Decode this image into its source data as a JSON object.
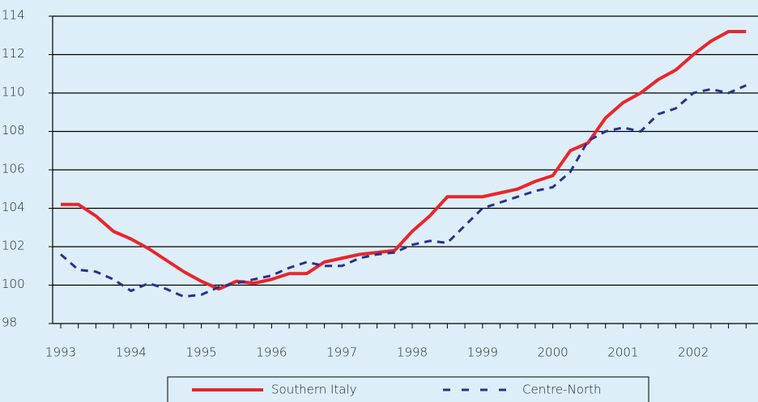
{
  "chart_data": {
    "type": "line",
    "categories": [
      "1993",
      null,
      null,
      null,
      "1994",
      null,
      null,
      null,
      "1995",
      null,
      null,
      null,
      "1996",
      null,
      null,
      null,
      "1997",
      null,
      null,
      null,
      "1998",
      null,
      null,
      null,
      "1999",
      null,
      null,
      null,
      "2000",
      null,
      null,
      null,
      "2001",
      null,
      null,
      null,
      "2002",
      null,
      null,
      null
    ],
    "series": [
      {
        "name": "Southern Italy",
        "color": "#e8262c",
        "dash": false,
        "values": [
          104.2,
          104.2,
          103.6,
          102.8,
          102.4,
          101.9,
          101.3,
          100.7,
          100.2,
          99.8,
          100.2,
          100.1,
          100.3,
          100.6,
          100.6,
          101.2,
          101.4,
          101.6,
          101.7,
          101.8,
          102.8,
          103.6,
          104.6,
          104.6,
          104.6,
          104.8,
          105.0,
          105.4,
          105.7,
          107.0,
          107.4,
          108.7,
          109.5,
          110.0,
          110.7,
          111.2,
          112.0,
          112.7,
          113.2,
          113.2
        ]
      },
      {
        "name": "Centre-North",
        "color": "#2b2f8c",
        "dash": true,
        "values": [
          101.6,
          100.8,
          100.7,
          100.3,
          99.7,
          100.1,
          99.8,
          99.4,
          99.5,
          99.9,
          100.1,
          100.3,
          100.5,
          100.9,
          101.2,
          101.0,
          101.0,
          101.4,
          101.6,
          101.7,
          102.1,
          102.3,
          102.2,
          103.1,
          104.0,
          104.3,
          104.6,
          104.9,
          105.1,
          105.9,
          107.5,
          108.0,
          108.2,
          108.0,
          108.9,
          109.2,
          110.0,
          110.2,
          110.0,
          110.4
        ]
      }
    ],
    "ylim": [
      98,
      114
    ],
    "yticks": [
      98,
      100,
      102,
      104,
      106,
      108,
      110,
      112,
      114
    ],
    "grid": true,
    "legend": "bottom"
  }
}
